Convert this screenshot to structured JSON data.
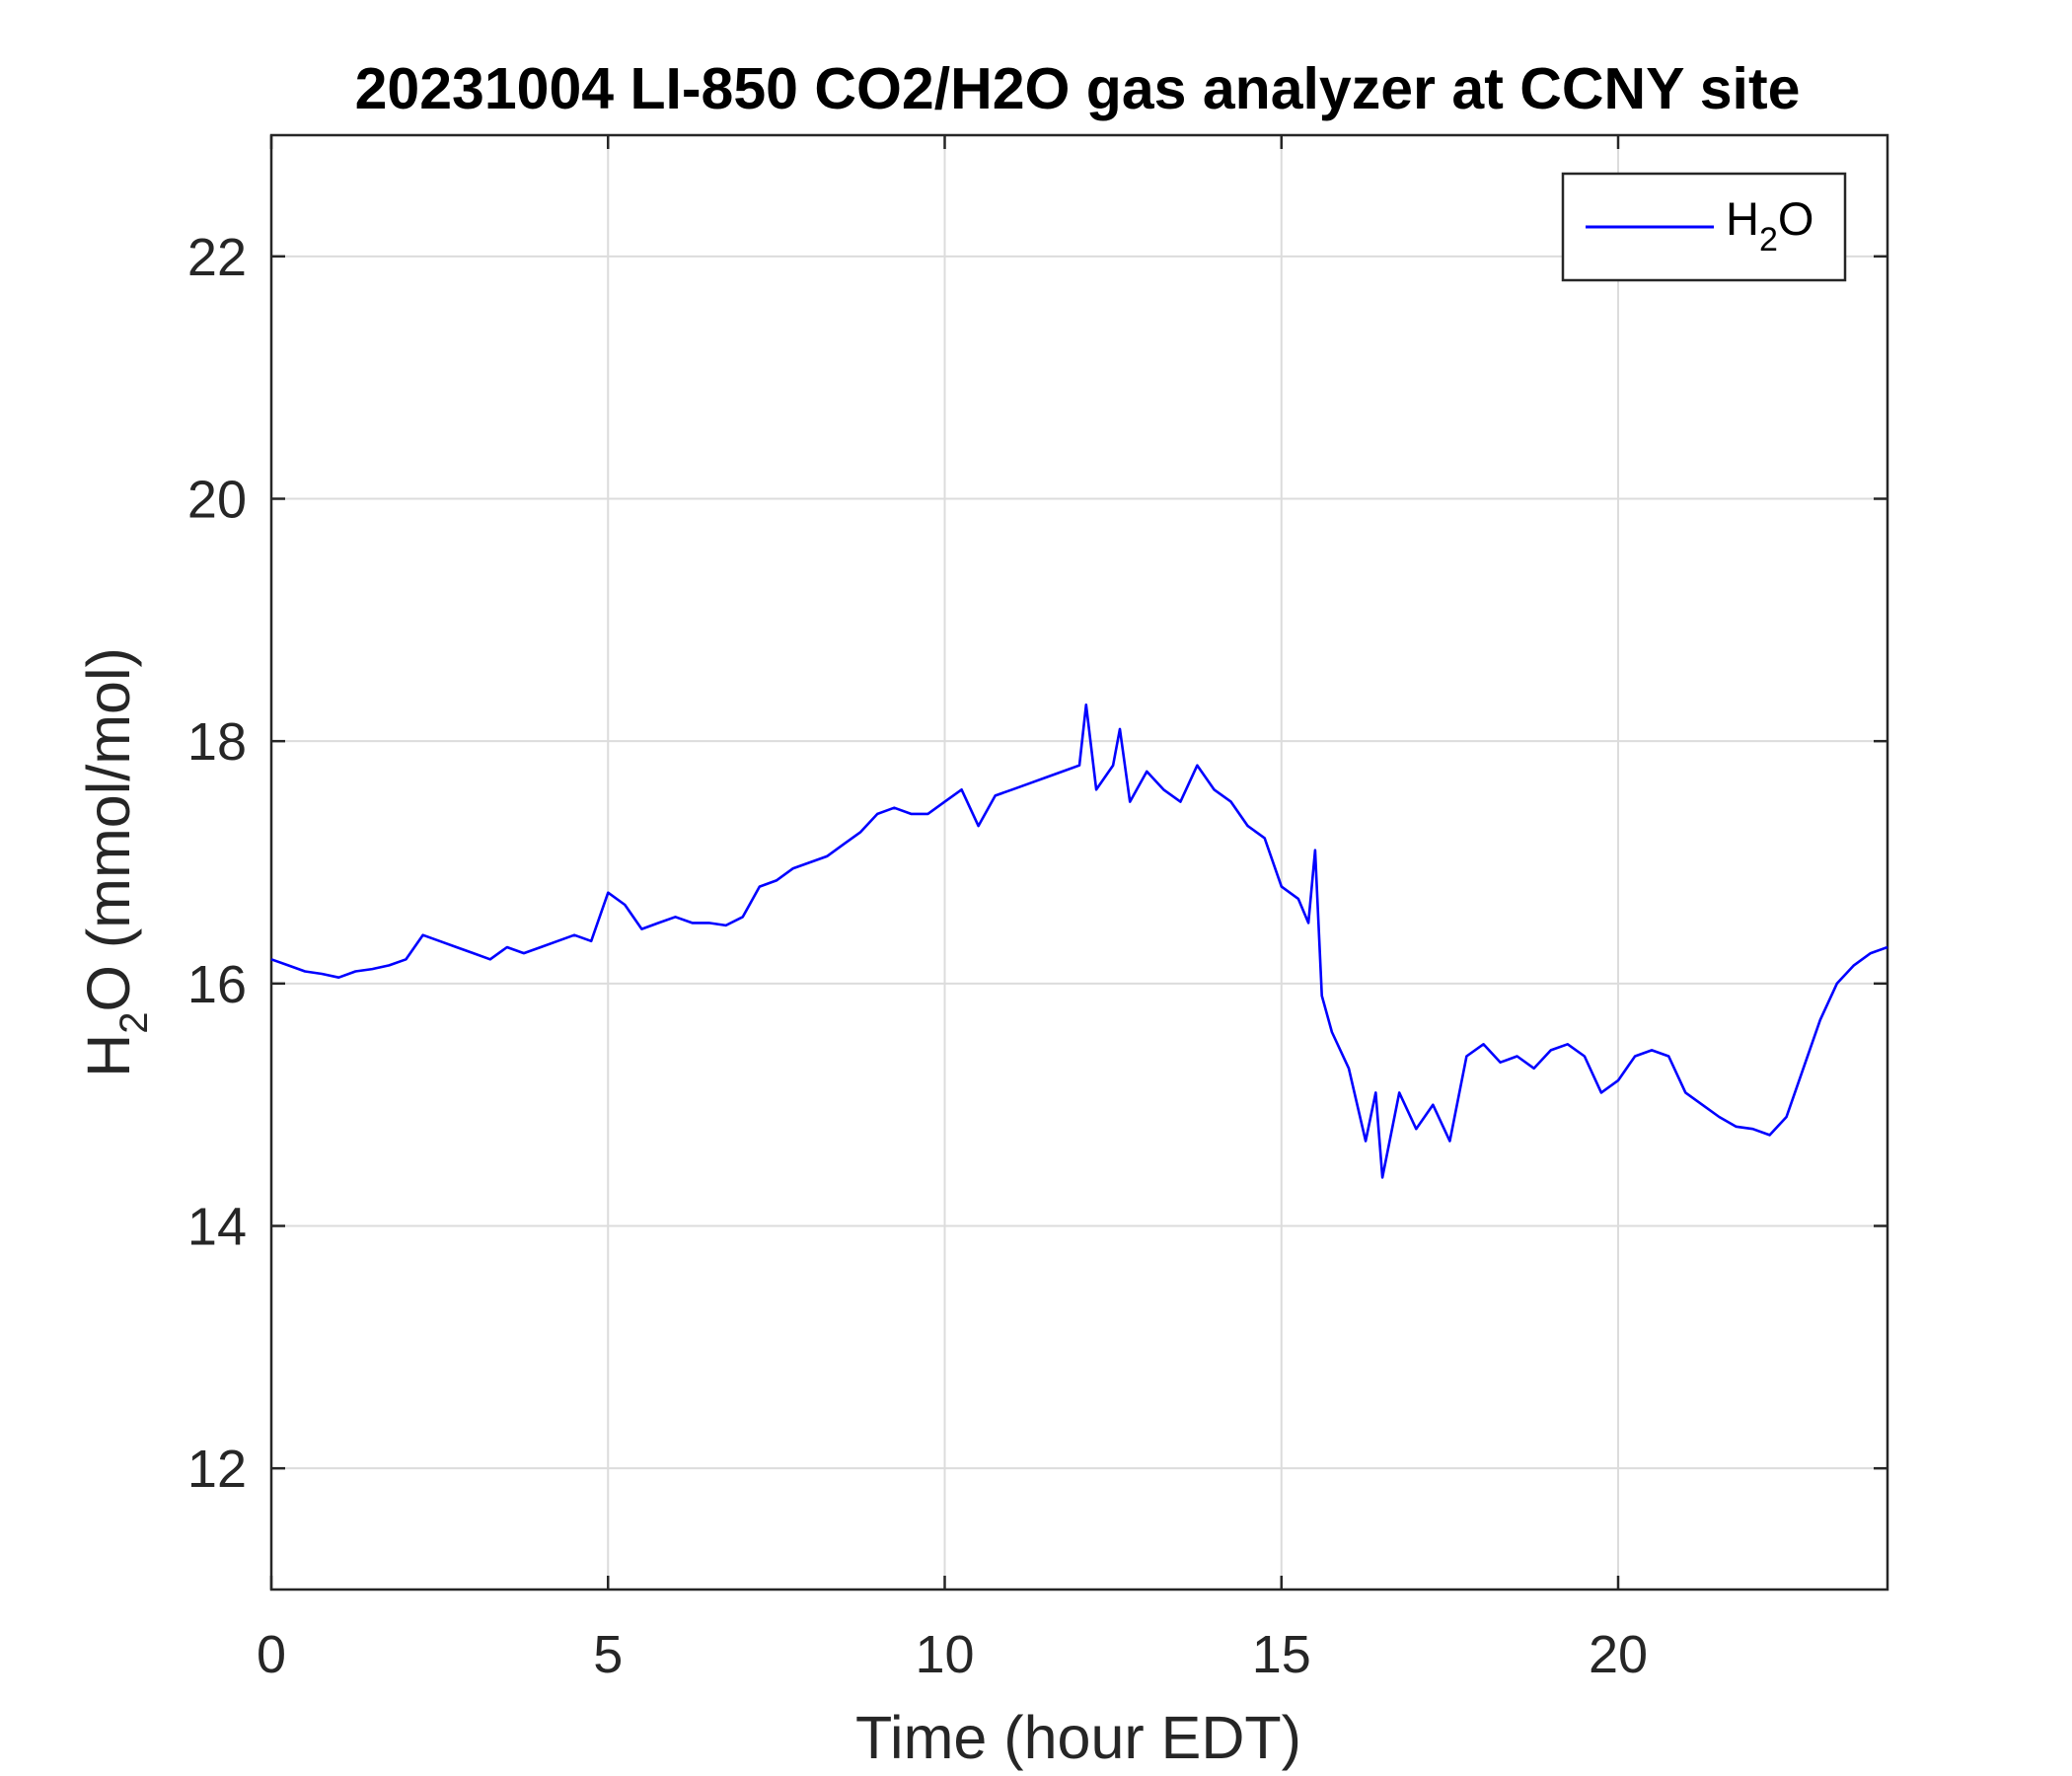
{
  "chart_data": {
    "type": "line",
    "title": "20231004 LI-850 CO2/H2O gas analyzer at CCNY site",
    "xlabel": "Time (hour EDT)",
    "ylabel": {
      "main": "H",
      "sub": "2",
      "rest": "O (mmol/mol)"
    },
    "xlim": [
      0,
      24
    ],
    "ylim": [
      11,
      23
    ],
    "xticks": [
      0,
      5,
      10,
      15,
      20
    ],
    "yticks": [
      12,
      14,
      16,
      18,
      20,
      22
    ],
    "grid": true,
    "legend_position": "top-right",
    "series": [
      {
        "name": {
          "main": "H",
          "sub": "2",
          "rest": "O"
        },
        "color": "#0000ff",
        "x": [
          0,
          0.25,
          0.5,
          0.75,
          1.0,
          1.25,
          1.5,
          1.75,
          2.0,
          2.25,
          2.5,
          2.75,
          3.0,
          3.25,
          3.5,
          3.75,
          4.0,
          4.25,
          4.5,
          4.75,
          5.0,
          5.25,
          5.5,
          5.75,
          6.0,
          6.25,
          6.5,
          6.75,
          7.0,
          7.25,
          7.5,
          7.75,
          8.0,
          8.25,
          8.5,
          8.75,
          9.0,
          9.25,
          9.5,
          9.75,
          10.0,
          10.25,
          10.5,
          10.75,
          11.0,
          11.25,
          11.5,
          11.75,
          12.0,
          12.1,
          12.25,
          12.5,
          12.6,
          12.75,
          13.0,
          13.25,
          13.5,
          13.75,
          14.0,
          14.25,
          14.5,
          14.75,
          15.0,
          15.25,
          15.4,
          15.5,
          15.6,
          15.75,
          16.0,
          16.25,
          16.4,
          16.5,
          16.75,
          17.0,
          17.25,
          17.5,
          17.75,
          18.0,
          18.25,
          18.5,
          18.75,
          19.0,
          19.25,
          19.5,
          19.75,
          20.0,
          20.25,
          20.5,
          20.75,
          21.0,
          21.25,
          21.5,
          21.75,
          22.0,
          22.25,
          22.5,
          22.75,
          23.0,
          23.25,
          23.5,
          23.75,
          24.0
        ],
        "values": [
          16.2,
          16.15,
          16.1,
          16.08,
          16.05,
          16.1,
          16.12,
          16.15,
          16.2,
          16.4,
          16.35,
          16.3,
          16.25,
          16.2,
          16.3,
          16.25,
          16.3,
          16.35,
          16.4,
          16.35,
          16.75,
          16.65,
          16.45,
          16.5,
          16.55,
          16.5,
          16.5,
          16.48,
          16.55,
          16.8,
          16.85,
          16.95,
          17.0,
          17.05,
          17.15,
          17.25,
          17.4,
          17.45,
          17.4,
          17.4,
          17.5,
          17.6,
          17.3,
          17.55,
          17.6,
          17.65,
          17.7,
          17.75,
          17.8,
          18.3,
          17.6,
          17.8,
          18.1,
          17.5,
          17.75,
          17.6,
          17.5,
          17.8,
          17.6,
          17.5,
          17.3,
          17.2,
          16.8,
          16.7,
          16.5,
          17.1,
          15.9,
          15.6,
          15.3,
          14.7,
          15.1,
          14.4,
          15.1,
          14.8,
          15.0,
          14.7,
          15.4,
          15.5,
          15.35,
          15.4,
          15.3,
          15.45,
          15.5,
          15.4,
          15.1,
          15.2,
          15.4,
          15.45,
          15.4,
          15.1,
          15.0,
          14.9,
          14.82,
          14.8,
          14.75,
          14.9,
          15.3,
          15.7,
          16.0,
          16.15,
          16.25,
          16.3
        ]
      }
    ]
  }
}
